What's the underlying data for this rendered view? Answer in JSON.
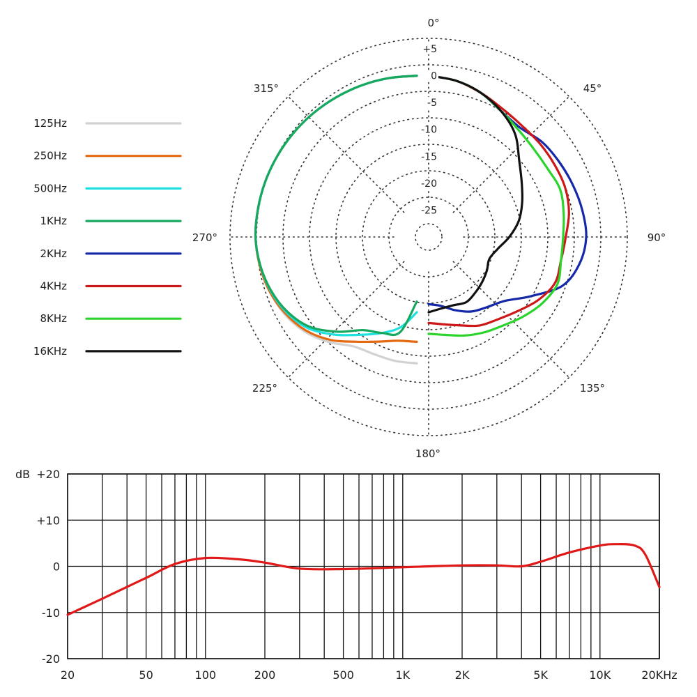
{
  "colors": {
    "125Hz": "#d2d2d2",
    "250Hz": "#e46a12",
    "500Hz": "#1ee0e0",
    "1KHz": "#17a860",
    "2KHz": "#1428a8",
    "4KHz": "#cc1818",
    "8KHz": "#2ad42a",
    "16KHz": "#111111",
    "response": "#e01818",
    "grid": "#111111",
    "dots": "#333333"
  },
  "chart_data": [
    {
      "type": "polar",
      "angle_labels": [
        "0°",
        "45°",
        "90°",
        "135°",
        "180°",
        "225°",
        "270°",
        "315°"
      ],
      "radial_labels": [
        "+5",
        "0",
        "-5",
        "-10",
        "-15",
        "-20",
        "-25"
      ],
      "rlim": [
        -30,
        5
      ],
      "legend": [
        "125Hz",
        "250Hz",
        "500Hz",
        "1KHz",
        "2KHz",
        "4KHz",
        "8KHz",
        "16KHz"
      ],
      "legend_position": "left",
      "series": [
        {
          "name": "125Hz",
          "side": "left",
          "points": [
            [
              180,
              -6.5
            ],
            [
              190,
              -6.6
            ],
            [
              200,
              -6.8
            ],
            [
              210,
              -6.5
            ],
            [
              220,
              -4.5
            ],
            [
              230,
              -2.7
            ],
            [
              240,
              -1.5
            ],
            [
              250,
              -0.8
            ],
            [
              260,
              -0.3
            ],
            [
              270,
              0
            ],
            [
              280,
              0
            ],
            [
              290,
              0
            ],
            [
              300,
              0
            ],
            [
              310,
              0
            ],
            [
              320,
              0
            ],
            [
              330,
              0
            ],
            [
              340,
              0
            ],
            [
              350,
              0
            ],
            [
              360,
              0
            ]
          ]
        },
        {
          "name": "250Hz",
          "side": "left",
          "points": [
            [
              180,
              -10.5
            ],
            [
              190,
              -10.4
            ],
            [
              200,
              -9.3
            ],
            [
              210,
              -7.5
            ],
            [
              220,
              -5
            ],
            [
              230,
              -3
            ],
            [
              240,
              -1.7
            ],
            [
              250,
              -0.8
            ],
            [
              260,
              -0.3
            ],
            [
              270,
              0
            ],
            [
              280,
              0
            ],
            [
              290,
              0
            ],
            [
              300,
              0
            ],
            [
              310,
              0
            ],
            [
              320,
              0
            ],
            [
              330,
              0
            ],
            [
              340,
              0
            ],
            [
              350,
              0
            ],
            [
              360,
              0
            ]
          ]
        },
        {
          "name": "500Hz",
          "side": "left",
          "points": [
            [
              180,
              -16
            ],
            [
              190,
              -13
            ],
            [
              200,
              -11
            ],
            [
              210,
              -9
            ],
            [
              220,
              -6.3
            ],
            [
              230,
              -3.6
            ],
            [
              240,
              -2
            ],
            [
              250,
              -1
            ],
            [
              260,
              -0.4
            ],
            [
              270,
              0
            ],
            [
              280,
              0
            ],
            [
              290,
              0
            ],
            [
              300,
              0
            ],
            [
              310,
              0
            ],
            [
              320,
              0
            ],
            [
              330,
              0
            ],
            [
              340,
              0
            ],
            [
              350,
              0
            ],
            [
              360,
              0
            ]
          ]
        },
        {
          "name": "1KHz",
          "side": "left",
          "points": [
            [
              180,
              -18
            ],
            [
              190,
              -12
            ],
            [
              200,
              -11
            ],
            [
              210,
              -10
            ],
            [
              220,
              -7
            ],
            [
              230,
              -4
            ],
            [
              240,
              -2.2
            ],
            [
              250,
              -1.1
            ],
            [
              260,
              -0.4
            ],
            [
              270,
              0
            ],
            [
              280,
              0
            ],
            [
              290,
              0
            ],
            [
              300,
              0
            ],
            [
              310,
              0
            ],
            [
              320,
              0
            ],
            [
              330,
              0
            ],
            [
              340,
              0
            ],
            [
              350,
              0
            ],
            [
              360,
              0
            ]
          ]
        },
        {
          "name": "2KHz",
          "side": "right",
          "points": [
            [
              0,
              0
            ],
            [
              10,
              -0.5
            ],
            [
              20,
              -1.5
            ],
            [
              30,
              -3
            ],
            [
              40,
              -3.5
            ],
            [
              50,
              -2.5
            ],
            [
              60,
              -2
            ],
            [
              70,
              -1.5
            ],
            [
              80,
              -1
            ],
            [
              90,
              -0.7
            ],
            [
              100,
              -1.5
            ],
            [
              110,
              -3.5
            ],
            [
              120,
              -8
            ],
            [
              130,
              -11.5
            ],
            [
              140,
              -13
            ],
            [
              150,
              -14
            ],
            [
              160,
              -15.5
            ],
            [
              170,
              -17
            ],
            [
              180,
              -17.5
            ]
          ]
        },
        {
          "name": "4KHz",
          "side": "right",
          "points": [
            [
              0,
              0
            ],
            [
              10,
              -0.5
            ],
            [
              20,
              -1.5
            ],
            [
              30,
              -2.5
            ],
            [
              40,
              -3
            ],
            [
              50,
              -3
            ],
            [
              60,
              -3
            ],
            [
              70,
              -3
            ],
            [
              80,
              -3.5
            ],
            [
              90,
              -4.5
            ],
            [
              100,
              -5
            ],
            [
              110,
              -5
            ],
            [
              120,
              -6.5
            ],
            [
              130,
              -8.5
            ],
            [
              140,
              -10
            ],
            [
              150,
              -11
            ],
            [
              160,
              -12.5
            ],
            [
              170,
              -13.5
            ],
            [
              180,
              -14
            ]
          ]
        },
        {
          "name": "8KHz",
          "side": "right",
          "points": [
            [
              0,
              0
            ],
            [
              10,
              -0.5
            ],
            [
              20,
              -1.5
            ],
            [
              30,
              -3
            ],
            [
              40,
              -4
            ],
            [
              50,
              -4.5
            ],
            [
              60,
              -4.5
            ],
            [
              70,
              -4
            ],
            [
              80,
              -4.5
            ],
            [
              90,
              -5
            ],
            [
              100,
              -5
            ],
            [
              110,
              -4.5
            ],
            [
              120,
              -5.5
            ],
            [
              130,
              -7
            ],
            [
              140,
              -8.5
            ],
            [
              150,
              -9.5
            ],
            [
              160,
              -10.5
            ],
            [
              170,
              -11.5
            ],
            [
              180,
              -12
            ]
          ]
        },
        {
          "name": "16KHz",
          "side": "right",
          "points": [
            [
              0,
              0
            ],
            [
              10,
              -0.5
            ],
            [
              20,
              -1.5
            ],
            [
              30,
              -3
            ],
            [
              40,
              -5
            ],
            [
              50,
              -8
            ],
            [
              60,
              -10
            ],
            [
              70,
              -11.5
            ],
            [
              80,
              -13
            ],
            [
              90,
              -15
            ],
            [
              100,
              -17
            ],
            [
              110,
              -18
            ],
            [
              120,
              -17.5
            ],
            [
              130,
              -17
            ],
            [
              140,
              -16.5
            ],
            [
              150,
              -16
            ],
            [
              160,
              -16.5
            ],
            [
              170,
              -16.5
            ],
            [
              180,
              -16
            ]
          ]
        }
      ]
    },
    {
      "type": "line",
      "xlabel": "",
      "ylabel": "dB",
      "xscale": "log",
      "xlim": [
        20,
        20000
      ],
      "ylim": [
        -20,
        20
      ],
      "grid": true,
      "x_ticks": [
        20,
        50,
        100,
        200,
        500,
        1000,
        2000,
        5000,
        10000,
        20000
      ],
      "x_tick_labels": [
        "20",
        "50",
        "100",
        "200",
        "500",
        "1K",
        "2K",
        "5K",
        "10K",
        "20KHz"
      ],
      "y_ticks": [
        -20,
        -10,
        0,
        10,
        20
      ],
      "y_tick_labels": [
        "-20",
        "-10",
        "0",
        "+10",
        "+20"
      ],
      "series": [
        {
          "x": [
            20,
            30,
            50,
            70,
            100,
            150,
            200,
            300,
            500,
            1000,
            2000,
            3000,
            4000,
            5000,
            7000,
            10000,
            12000,
            15000,
            17000,
            20000
          ],
          "y": [
            -10.5,
            -7,
            -2.5,
            0.5,
            1.8,
            1.5,
            0.8,
            -0.5,
            -0.6,
            -0.2,
            0.2,
            0.2,
            0,
            1,
            3,
            4.5,
            4.8,
            4.5,
            2.5,
            -4.5
          ]
        }
      ]
    }
  ]
}
